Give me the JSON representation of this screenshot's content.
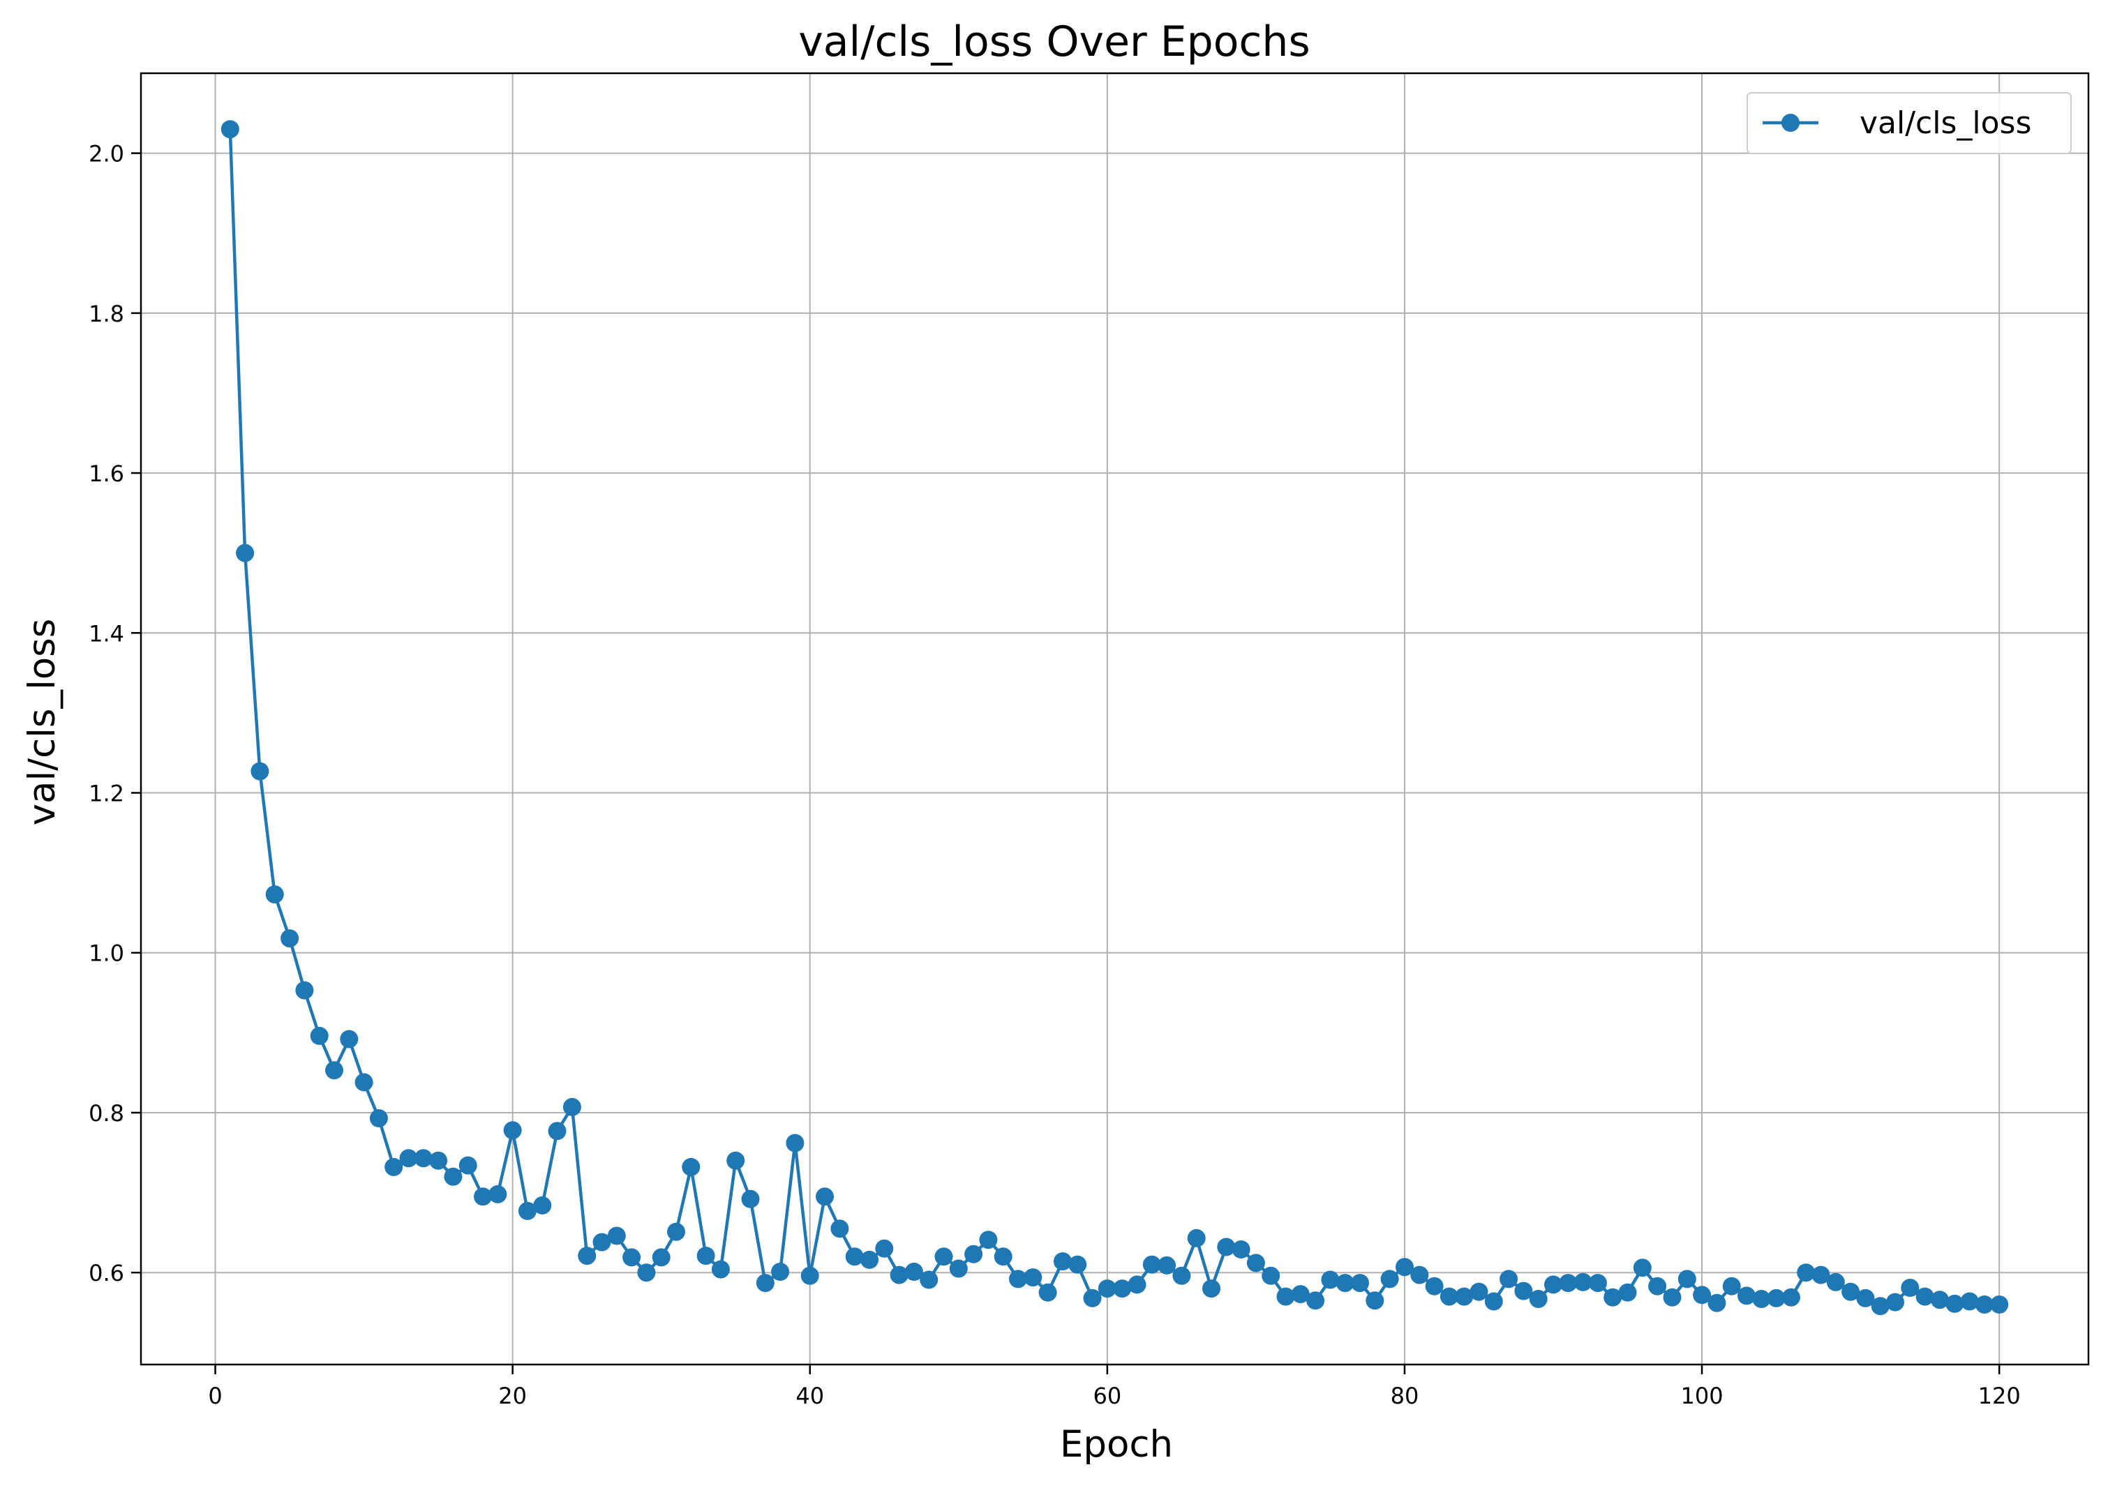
{
  "chart_data": {
    "type": "line",
    "title": "val/cls_loss Over Epochs",
    "xlabel": "Epoch",
    "ylabel": "val/cls_loss",
    "xlim": [
      -5,
      126
    ],
    "ylim": [
      0.485,
      2.1
    ],
    "xticks": [
      0,
      20,
      40,
      60,
      80,
      100,
      120
    ],
    "xtick_labels": [
      "0",
      "20",
      "40",
      "60",
      "80",
      "100",
      "120"
    ],
    "yticks": [
      0.6,
      0.8,
      1.0,
      1.2,
      1.4,
      1.6,
      1.8,
      2.0
    ],
    "ytick_labels": [
      "0.6",
      "0.8",
      "1.0",
      "1.2",
      "1.4",
      "1.6",
      "1.8",
      "2.0"
    ],
    "grid": true,
    "legend_position": "top-right",
    "series": [
      {
        "name": "val/cls_loss",
        "color": "#1f77b4",
        "marker": "circle",
        "x": [
          1,
          2,
          3,
          4,
          5,
          6,
          7,
          8,
          9,
          10,
          11,
          12,
          13,
          14,
          15,
          16,
          17,
          18,
          19,
          20,
          21,
          22,
          23,
          24,
          25,
          26,
          27,
          28,
          29,
          30,
          31,
          32,
          33,
          34,
          35,
          36,
          37,
          38,
          39,
          40,
          41,
          42,
          43,
          44,
          45,
          46,
          47,
          48,
          49,
          50,
          51,
          52,
          53,
          54,
          55,
          56,
          57,
          58,
          59,
          60,
          61,
          62,
          63,
          64,
          65,
          66,
          67,
          68,
          69,
          70,
          71,
          72,
          73,
          74,
          75,
          76,
          77,
          78,
          79,
          80,
          81,
          82,
          83,
          84,
          85,
          86,
          87,
          88,
          89,
          90,
          91,
          92,
          93,
          94,
          95,
          96,
          97,
          98,
          99,
          100,
          101,
          102,
          103,
          104,
          105,
          106,
          107,
          108,
          109,
          110,
          111,
          112,
          113,
          114,
          115,
          116,
          117,
          118,
          119,
          120
        ],
        "y": [
          2.03,
          1.5,
          1.227,
          1.073,
          1.018,
          0.953,
          0.896,
          0.853,
          0.892,
          0.838,
          0.793,
          0.732,
          0.743,
          0.743,
          0.74,
          0.72,
          0.734,
          0.695,
          0.698,
          0.778,
          0.677,
          0.684,
          0.777,
          0.807,
          0.621,
          0.638,
          0.646,
          0.619,
          0.6,
          0.619,
          0.651,
          0.732,
          0.621,
          0.604,
          0.74,
          0.692,
          0.587,
          0.601,
          0.762,
          0.596,
          0.695,
          0.655,
          0.62,
          0.616,
          0.63,
          0.597,
          0.601,
          0.591,
          0.62,
          0.605,
          0.623,
          0.641,
          0.62,
          0.592,
          0.594,
          0.575,
          0.614,
          0.61,
          0.568,
          0.58,
          0.58,
          0.585,
          0.61,
          0.609,
          0.596,
          0.643,
          0.58,
          0.632,
          0.629,
          0.612,
          0.596,
          0.57,
          0.573,
          0.565,
          0.591,
          0.587,
          0.587,
          0.565,
          0.592,
          0.607,
          0.597,
          0.583,
          0.57,
          0.57,
          0.576,
          0.564,
          0.592,
          0.577,
          0.567,
          0.585,
          0.587,
          0.588,
          0.587,
          0.569,
          0.575,
          0.606,
          0.583,
          0.569,
          0.592,
          0.572,
          0.562,
          0.583,
          0.571,
          0.567,
          0.568,
          0.569,
          0.6,
          0.597,
          0.588,
          0.576,
          0.568,
          0.558,
          0.563,
          0.581,
          0.57,
          0.566,
          0.561,
          0.564,
          0.56,
          0.56
        ]
      }
    ]
  }
}
